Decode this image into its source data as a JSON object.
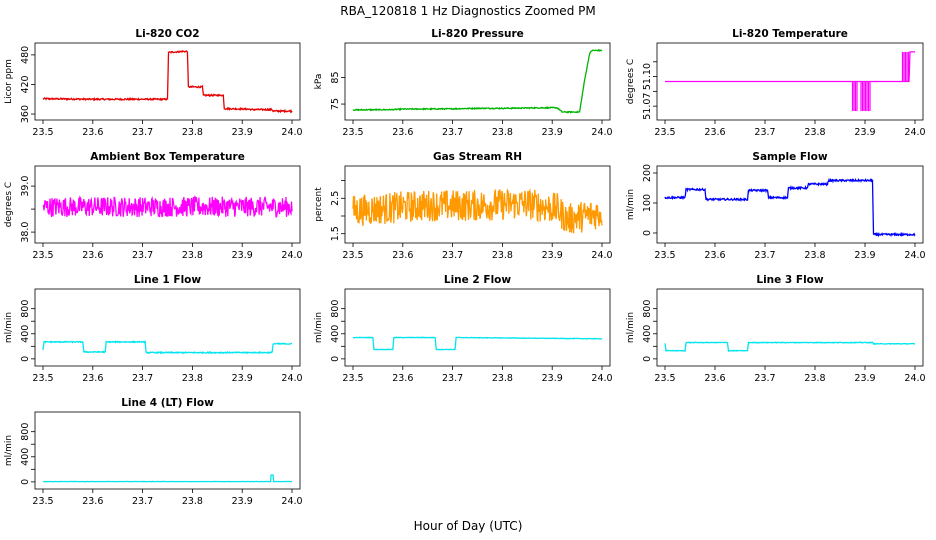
{
  "figure": {
    "title": "RBA_120818  1 Hz Diagnostics Zoomed PM",
    "xlabel": "Hour of Day (UTC)"
  },
  "chart_data": [
    {
      "type": "line",
      "title": "Li-820 CO2",
      "ylabel": "Licor ppm",
      "xlim": [
        23.5,
        24.0
      ],
      "x_ticks": [
        23.5,
        23.6,
        23.7,
        23.8,
        23.9,
        24.0
      ],
      "ylim": [
        356,
        496
      ],
      "y_ticks": [
        360,
        420,
        480
      ],
      "color": "#e60000",
      "noise": 1.5,
      "series": [
        {
          "x": [
            23.5,
            23.6,
            23.7,
            23.75,
            23.752,
            23.78,
            23.79,
            23.792,
            23.82,
            23.822,
            23.862,
            23.864,
            23.91,
            23.92,
            23.94,
            23.96,
            23.962,
            24.0
          ],
          "y": [
            391,
            390,
            390,
            390,
            485,
            487,
            487,
            415,
            415,
            398,
            398,
            371,
            370,
            369,
            369,
            369,
            366,
            366
          ]
        }
      ]
    },
    {
      "type": "line",
      "title": "Li-820 Pressure",
      "ylabel": "kPa",
      "xlim": [
        23.5,
        24.0
      ],
      "x_ticks": [
        23.5,
        23.6,
        23.7,
        23.8,
        23.9,
        24.0
      ],
      "ylim": [
        70.5,
        96.5
      ],
      "y_ticks": [
        75,
        85
      ],
      "color": "#00b400",
      "noise": 0.2,
      "series": [
        {
          "x": [
            23.5,
            23.58,
            23.6,
            23.7,
            23.72,
            23.75,
            23.8,
            23.84,
            23.88,
            23.91,
            23.92,
            23.955,
            23.96,
            23.965,
            23.97,
            23.975,
            23.98,
            24.0
          ],
          "y": [
            72.8,
            72.9,
            73.1,
            73.2,
            73.3,
            73.4,
            73.4,
            73.5,
            73.6,
            73.6,
            72.0,
            72.0,
            78,
            84,
            89,
            94,
            95.2,
            95.2
          ]
        }
      ]
    },
    {
      "type": "line",
      "title": "Li-820 Temperature",
      "ylabel": "degrees C",
      "xlim": [
        23.5,
        24.0
      ],
      "x_ticks": [
        23.5,
        23.6,
        23.7,
        23.8,
        23.9,
        24.0
      ],
      "ylim": [
        51.06,
        51.13
      ],
      "y_ticks": [
        51.07,
        51.1
      ],
      "y_tick_labels": [
        "51.07",
        "51.10"
      ],
      "extra_ticks_unlabeled": [
        51.085,
        51.115
      ],
      "color": "#ff00ff",
      "base": 51.095,
      "glitch_bands": [
        [
          23.875,
          23.885,
          51.065,
          51.095
        ],
        [
          23.892,
          23.91,
          51.065,
          51.095
        ],
        [
          23.975,
          23.99,
          51.095,
          51.125
        ]
      ],
      "series": [
        {
          "x": [
            23.5,
            23.988,
            23.99,
            24.0
          ],
          "y": [
            51.095,
            51.095,
            51.125,
            51.125
          ]
        }
      ]
    },
    {
      "type": "line",
      "title": "Ambient Box Temperature",
      "ylabel": "degrees C",
      "xlim": [
        23.5,
        24.0
      ],
      "x_ticks": [
        23.5,
        23.6,
        23.7,
        23.8,
        23.9,
        24.0
      ],
      "ylim": [
        37.85,
        39.35
      ],
      "y_ticks": [
        38.0,
        39.0
      ],
      "y_tick_labels": [
        "38.0",
        "39.0"
      ],
      "extra_ticks_unlabeled": [
        38.5
      ],
      "color": "#ff00ff",
      "noise": 0.22,
      "series": [
        {
          "x": [
            23.5,
            24.0
          ],
          "y": [
            38.55,
            38.55
          ]
        }
      ]
    },
    {
      "type": "line",
      "title": "Gas Stream RH",
      "ylabel": "percent",
      "xlim": [
        23.5,
        24.0
      ],
      "x_ticks": [
        23.5,
        23.6,
        23.7,
        23.8,
        23.9,
        24.0
      ],
      "ylim": [
        1.35,
        3.3
      ],
      "y_ticks": [
        1.5,
        2.5
      ],
      "y_tick_labels": [
        "1.5",
        "2.5"
      ],
      "extra_ticks_unlabeled": [
        2.0,
        3.0
      ],
      "color": "#ff9900",
      "noise": 0.45,
      "series": [
        {
          "x": [
            23.5,
            23.65,
            23.75,
            23.85,
            23.91,
            23.93,
            24.0
          ],
          "y": [
            2.15,
            2.3,
            2.3,
            2.35,
            2.2,
            1.9,
            2.1
          ]
        }
      ]
    },
    {
      "type": "line",
      "title": "Sample Flow",
      "ylabel": "ml/min",
      "xlim": [
        23.5,
        24.0
      ],
      "x_ticks": [
        23.5,
        23.6,
        23.7,
        23.8,
        23.9,
        24.0
      ],
      "ylim": [
        -20,
        210
      ],
      "y_ticks": [
        0,
        100,
        200
      ],
      "color": "#0000ff",
      "noise": 3,
      "series": [
        {
          "x": [
            23.5,
            23.54,
            23.542,
            23.58,
            23.582,
            23.665,
            23.667,
            23.705,
            23.707,
            23.745,
            23.747,
            23.785,
            23.787,
            23.825,
            23.827,
            23.915,
            23.917,
            24.0
          ],
          "y": [
            118,
            118,
            145,
            145,
            112,
            112,
            142,
            142,
            118,
            118,
            150,
            150,
            163,
            163,
            175,
            175,
            -5,
            -5
          ]
        }
      ]
    },
    {
      "type": "line",
      "title": "Line 1 Flow",
      "ylabel": "ml/min",
      "xlim": [
        23.5,
        24.0
      ],
      "x_ticks": [
        23.5,
        23.6,
        23.7,
        23.8,
        23.9,
        24.0
      ],
      "ylim": [
        -50,
        1050
      ],
      "y_ticks": [
        0,
        200,
        400,
        600,
        800
      ],
      "y_tick_labels": [
        "0",
        "",
        "400",
        "",
        "800"
      ],
      "color": "#00e5ee",
      "noise": 8,
      "series": [
        {
          "x": [
            23.5,
            23.502,
            23.58,
            23.582,
            23.625,
            23.627,
            23.705,
            23.707,
            23.96,
            23.962,
            24.0
          ],
          "y": [
            150,
            270,
            270,
            110,
            110,
            270,
            270,
            100,
            100,
            240,
            240
          ]
        }
      ]
    },
    {
      "type": "line",
      "title": "Line 2 Flow",
      "ylabel": "ml/min",
      "xlim": [
        23.5,
        24.0
      ],
      "x_ticks": [
        23.5,
        23.6,
        23.7,
        23.8,
        23.9,
        24.0
      ],
      "ylim": [
        -50,
        1050
      ],
      "y_ticks": [
        0,
        200,
        400,
        600,
        800
      ],
      "y_tick_labels": [
        "0",
        "",
        "400",
        "",
        "800"
      ],
      "color": "#00e5ee",
      "noise": 4,
      "series": [
        {
          "x": [
            23.5,
            23.54,
            23.542,
            23.58,
            23.582,
            23.665,
            23.667,
            23.705,
            23.707,
            24.0
          ],
          "y": [
            340,
            340,
            150,
            150,
            340,
            340,
            150,
            150,
            340,
            320
          ]
        }
      ]
    },
    {
      "type": "line",
      "title": "Line 3 Flow",
      "ylabel": "ml/min",
      "xlim": [
        23.5,
        24.0
      ],
      "x_ticks": [
        23.5,
        23.6,
        23.7,
        23.8,
        23.9,
        24.0
      ],
      "ylim": [
        -50,
        1050
      ],
      "y_ticks": [
        0,
        200,
        400,
        600,
        800
      ],
      "y_tick_labels": [
        "0",
        "",
        "400",
        "",
        "800"
      ],
      "color": "#00e5ee",
      "noise": 5,
      "series": [
        {
          "x": [
            23.5,
            23.502,
            23.54,
            23.542,
            23.625,
            23.627,
            23.665,
            23.667,
            23.915,
            23.917,
            24.0
          ],
          "y": [
            250,
            130,
            130,
            260,
            260,
            130,
            130,
            260,
            260,
            240,
            240
          ]
        }
      ]
    },
    {
      "type": "line",
      "title": "Line 4 (LT) Flow",
      "ylabel": "ml/min",
      "xlim": [
        23.5,
        24.0
      ],
      "x_ticks": [
        23.5,
        23.6,
        23.7,
        23.8,
        23.9,
        24.0
      ],
      "ylim": [
        -50,
        1050
      ],
      "y_ticks": [
        0,
        200,
        400,
        600,
        800
      ],
      "y_tick_labels": [
        "0",
        "",
        "400",
        "",
        "800"
      ],
      "color": "#00e5ee",
      "noise": 2,
      "spike": [
        23.958,
        23.962,
        110
      ],
      "series": [
        {
          "x": [
            23.5,
            24.0
          ],
          "y": [
            5,
            5
          ]
        }
      ]
    }
  ]
}
